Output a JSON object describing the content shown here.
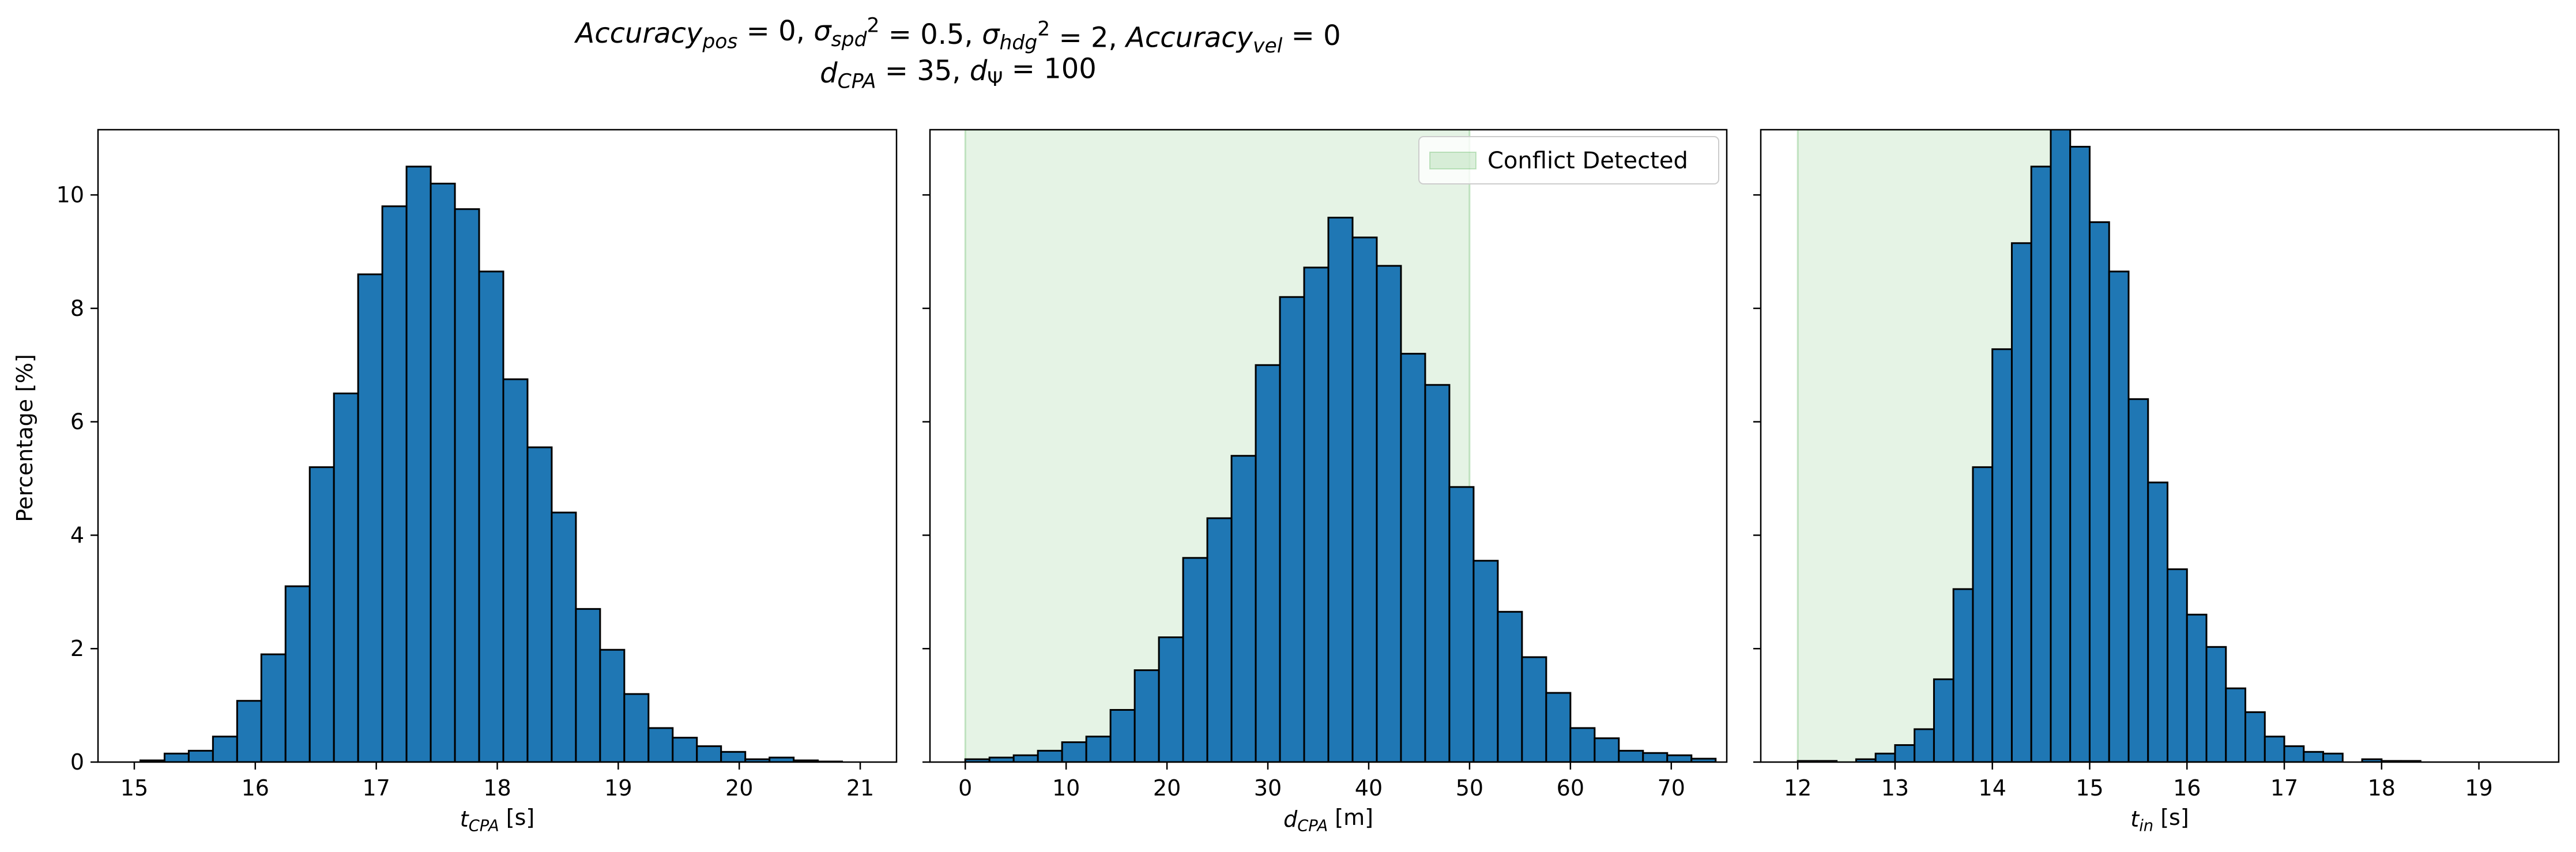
{
  "figure": {
    "title_line1": {
      "parts": [
        {
          "t": "Accuracy",
          "style": "italic"
        },
        {
          "t": "pos",
          "style": "italic-sub"
        },
        {
          "t": " = 0, ",
          "style": "normal"
        },
        {
          "t": "σ",
          "style": "italic"
        },
        {
          "t": "spd",
          "style": "italic-sub"
        },
        {
          "t": "2",
          "style": "super"
        },
        {
          "t": " = 0.5, ",
          "style": "normal"
        },
        {
          "t": "σ",
          "style": "italic"
        },
        {
          "t": "hdg",
          "style": "italic-sub"
        },
        {
          "t": "2",
          "style": "super"
        },
        {
          "t": " = 2, ",
          "style": "normal"
        },
        {
          "t": "Accuracy",
          "style": "italic"
        },
        {
          "t": "vel",
          "style": "italic-sub"
        },
        {
          "t": " = 0",
          "style": "normal"
        }
      ]
    },
    "title_line2": {
      "parts": [
        {
          "t": "d",
          "style": "italic"
        },
        {
          "t": "CPA",
          "style": "italic-sub"
        },
        {
          "t": " = 35, ",
          "style": "normal"
        },
        {
          "t": "d",
          "style": "italic"
        },
        {
          "t": "Ψ",
          "style": "sub"
        },
        {
          "t": " = 100",
          "style": "normal"
        }
      ]
    },
    "ylabel": "Percentage [%]"
  },
  "colors": {
    "bar_fill": "#1f77b4",
    "bar_edge": "#000000",
    "conflict_fill": "#2ca02c",
    "conflict_opacity": 0.12
  },
  "legend": {
    "label": "Conflict Detected"
  },
  "chart_data": [
    {
      "type": "bar",
      "subtype": "histogram",
      "xlabel": {
        "parts": [
          {
            "t": "t",
            "style": "italic"
          },
          {
            "t": "CPA",
            "style": "italic-sub"
          },
          {
            "t": " [s]",
            "style": "normal"
          }
        ]
      },
      "xlim": [
        14.7,
        21.3
      ],
      "ylim": [
        0,
        11.15
      ],
      "xticks": [
        15,
        16,
        17,
        18,
        19,
        20,
        21
      ],
      "yticks": [
        0,
        2,
        4,
        6,
        8,
        10
      ],
      "ylabels_visible": true,
      "bins": {
        "start": 14.85,
        "width": 0.2
      },
      "values": [
        0.0,
        0.03,
        0.15,
        0.2,
        0.45,
        1.08,
        1.9,
        3.1,
        5.2,
        6.5,
        8.6,
        9.8,
        10.5,
        10.2,
        9.75,
        8.65,
        6.75,
        5.55,
        4.4,
        2.7,
        1.98,
        1.2,
        0.6,
        0.43,
        0.28,
        0.18,
        0.05,
        0.08,
        0.03,
        0.01
      ]
    },
    {
      "type": "bar",
      "subtype": "histogram",
      "xlabel": {
        "parts": [
          {
            "t": "d",
            "style": "italic"
          },
          {
            "t": "CPA",
            "style": "italic-sub"
          },
          {
            "t": " [m]",
            "style": "normal"
          }
        ]
      },
      "xlim": [
        -3.5,
        75.5
      ],
      "ylim": [
        0,
        11.15
      ],
      "xticks": [
        0,
        10,
        20,
        30,
        40,
        50,
        60,
        70
      ],
      "yticks": [
        0,
        2,
        4,
        6,
        8,
        10
      ],
      "ylabels_visible": false,
      "shaded_region": [
        0,
        50
      ],
      "legend_position": "top-right",
      "bins": {
        "start": 0,
        "width": 2.4
      },
      "values": [
        0.05,
        0.08,
        0.12,
        0.2,
        0.35,
        0.45,
        0.92,
        1.62,
        2.2,
        3.6,
        4.3,
        5.4,
        7.0,
        8.2,
        8.72,
        9.6,
        9.25,
        8.75,
        7.2,
        6.65,
        4.85,
        3.55,
        2.65,
        1.85,
        1.22,
        0.6,
        0.42,
        0.2,
        0.16,
        0.12,
        0.06
      ]
    },
    {
      "type": "bar",
      "subtype": "histogram",
      "xlabel": {
        "parts": [
          {
            "t": "t",
            "style": "italic"
          },
          {
            "t": "in",
            "style": "italic-sub"
          },
          {
            "t": " [s]",
            "style": "normal"
          }
        ]
      },
      "xlim": [
        11.62,
        19.82
      ],
      "ylim": [
        0,
        11.15
      ],
      "xticks": [
        12,
        13,
        14,
        15,
        16,
        17,
        18,
        19
      ],
      "yticks": [
        0,
        2,
        4,
        6,
        8,
        10
      ],
      "ylabels_visible": false,
      "shaded_region": [
        12,
        14.8
      ],
      "bins": {
        "start": 12.0,
        "width": 0.2
      },
      "values": [
        0.02,
        0.02,
        0.0,
        0.05,
        0.15,
        0.3,
        0.58,
        1.46,
        3.05,
        5.2,
        7.28,
        9.15,
        10.5,
        11.2,
        10.85,
        9.52,
        8.65,
        6.4,
        4.93,
        3.4,
        2.6,
        2.03,
        1.3,
        0.88,
        0.45,
        0.28,
        0.18,
        0.15,
        0.0,
        0.05,
        0.02,
        0.02
      ]
    }
  ]
}
